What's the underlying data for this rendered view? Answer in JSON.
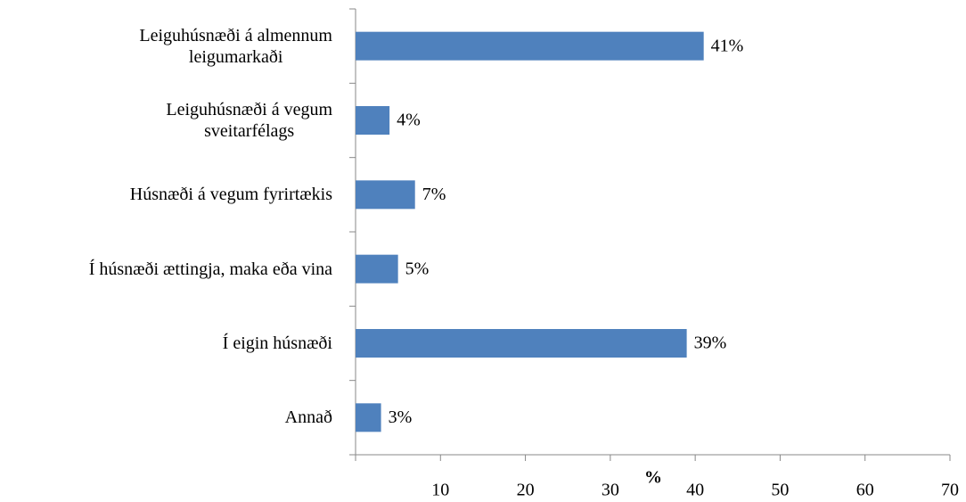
{
  "chart_data": {
    "type": "bar",
    "orientation": "horizontal",
    "categories": [
      "Leiguhúsnæði á almennum\nleigumarkaði",
      "Leiguhúsnæði á vegum\nsveitarfélags",
      "Húsnæði á vegum fyrirtækis",
      "Í húsnæði ættingja, maka eða vina",
      "Í eigin húsnæði",
      "Annað"
    ],
    "values": [
      41,
      4,
      7,
      5,
      39,
      3
    ],
    "value_labels": [
      "41%",
      "4%",
      "7%",
      "5%",
      "39%",
      "3%"
    ],
    "color": "#4f81bd",
    "xlabel": "%",
    "xlim": [
      0,
      70
    ],
    "xticks": [
      10,
      20,
      30,
      40,
      50,
      60,
      70
    ],
    "grid": false
  }
}
